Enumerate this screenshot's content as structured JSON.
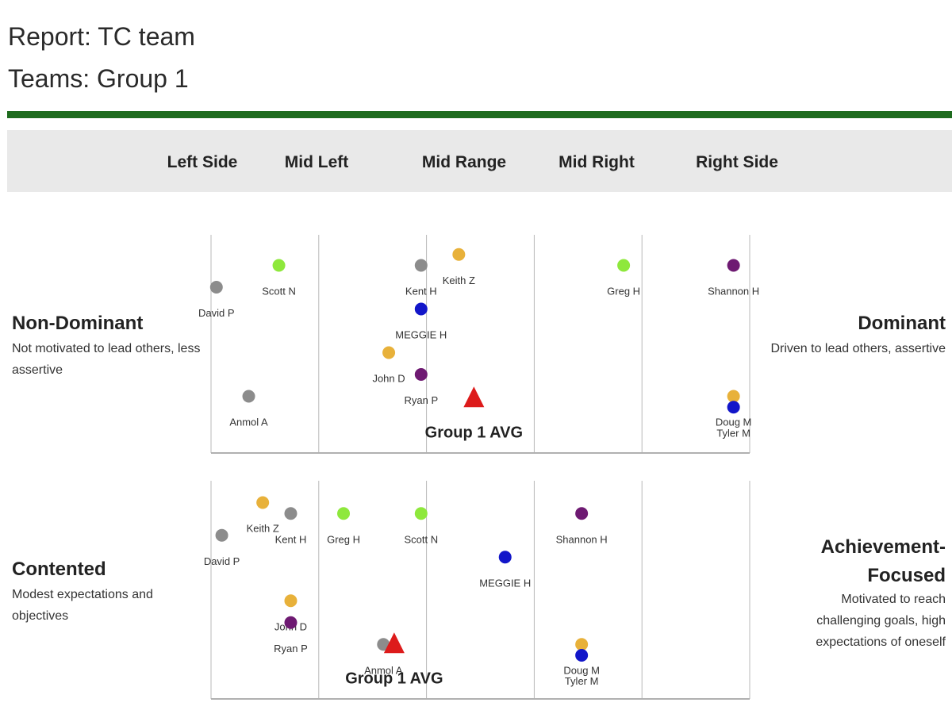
{
  "header": {
    "report_title": "Report: TC team",
    "team_line": "Teams: Group 1"
  },
  "scale_labels": [
    "Left Side",
    "Mid Left",
    "Mid Range",
    "Mid Right",
    "Right Side"
  ],
  "colors": {
    "header_rule": "#1e6b1e",
    "band": "#e9e9e9",
    "avg_marker": "#dd1b1b",
    "gray": "#8c8c8c",
    "lime": "#8ee83c",
    "orange": "#e8b13a",
    "blue": "#1216c9",
    "purple": "#6e1a72"
  },
  "panels": [
    {
      "left_title": "Non-Dominant",
      "left_desc": "Not motivated to lead others, less assertive",
      "right_title": "Dominant",
      "right_desc": "Driven to lead others, assertive"
    },
    {
      "left_title": "Contented",
      "left_desc": "Modest expectations and objectives",
      "right_title": "Achievement-Focused",
      "right_desc": "Motivated to reach challenging goals, high expectations of oneself"
    }
  ],
  "chart_data": [
    {
      "type": "scatter",
      "xlim": [
        0,
        5
      ],
      "ylim": [
        0,
        1
      ],
      "x_categories": [
        "Left Side",
        "Mid Left",
        "Mid Range",
        "Mid Right",
        "Right Side"
      ],
      "points": [
        {
          "label": "David P",
          "x": 0.05,
          "y": 0.76,
          "color": "gray"
        },
        {
          "label": "Scott N",
          "x": 0.63,
          "y": 0.86,
          "color": "lime"
        },
        {
          "label": "Anmol A",
          "x": 0.35,
          "y": 0.26,
          "color": "gray"
        },
        {
          "label": "Kent H",
          "x": 1.95,
          "y": 0.86,
          "color": "gray"
        },
        {
          "label": "Keith Z",
          "x": 2.3,
          "y": 0.91,
          "color": "orange"
        },
        {
          "label": "MEGGIE H",
          "x": 1.95,
          "y": 0.66,
          "color": "blue"
        },
        {
          "label": "John D",
          "x": 1.65,
          "y": 0.46,
          "color": "orange"
        },
        {
          "label": "Ryan P",
          "x": 1.95,
          "y": 0.36,
          "color": "purple"
        },
        {
          "label": "Greg H",
          "x": 3.83,
          "y": 0.86,
          "color": "lime"
        },
        {
          "label": "Shannon H",
          "x": 4.85,
          "y": 0.86,
          "color": "purple"
        },
        {
          "label": "Doug M",
          "x": 4.85,
          "y": 0.26,
          "color": "orange"
        },
        {
          "label": "Tyler M",
          "x": 4.85,
          "y": 0.21,
          "color": "blue"
        }
      ],
      "average": {
        "label": "Group 1 AVG",
        "x": 2.44,
        "y": 0.25
      }
    },
    {
      "type": "scatter",
      "xlim": [
        0,
        5
      ],
      "ylim": [
        0,
        1
      ],
      "x_categories": [
        "Left Side",
        "Mid Left",
        "Mid Range",
        "Mid Right",
        "Right Side"
      ],
      "points": [
        {
          "label": "Keith Z",
          "x": 0.48,
          "y": 0.9,
          "color": "orange"
        },
        {
          "label": "Kent H",
          "x": 0.74,
          "y": 0.85,
          "color": "gray"
        },
        {
          "label": "David P",
          "x": 0.1,
          "y": 0.75,
          "color": "gray"
        },
        {
          "label": "Greg H",
          "x": 1.23,
          "y": 0.85,
          "color": "lime"
        },
        {
          "label": "Scott N",
          "x": 1.95,
          "y": 0.85,
          "color": "lime"
        },
        {
          "label": "MEGGIE H",
          "x": 2.73,
          "y": 0.65,
          "color": "blue"
        },
        {
          "label": "Shannon H",
          "x": 3.44,
          "y": 0.85,
          "color": "purple"
        },
        {
          "label": "John D",
          "x": 0.74,
          "y": 0.45,
          "color": "orange"
        },
        {
          "label": "Ryan P",
          "x": 0.74,
          "y": 0.35,
          "color": "purple"
        },
        {
          "label": "Anmol A",
          "x": 1.6,
          "y": 0.25,
          "color": "gray"
        },
        {
          "label": "Doug M",
          "x": 3.44,
          "y": 0.25,
          "color": "orange"
        },
        {
          "label": "Tyler M",
          "x": 3.44,
          "y": 0.2,
          "color": "blue"
        }
      ],
      "average": {
        "label": "Group 1 AVG",
        "x": 1.7,
        "y": 0.25
      }
    }
  ]
}
